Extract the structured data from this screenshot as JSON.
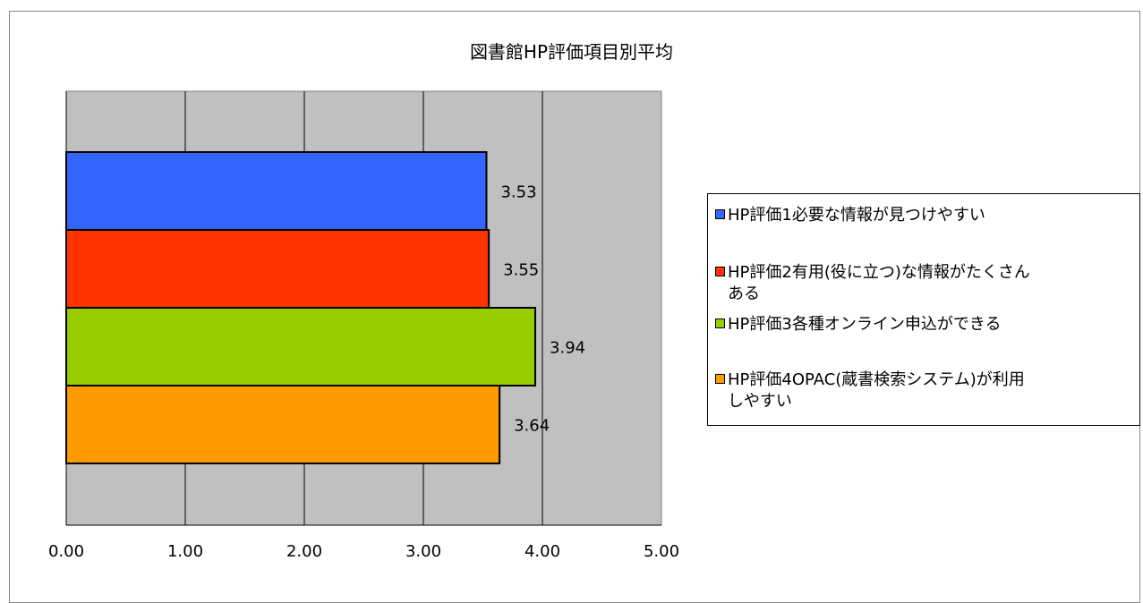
{
  "chart_data": {
    "type": "bar",
    "orientation": "horizontal",
    "title": "図書館HP評価項目別平均",
    "xlabel": "",
    "ylabel": "",
    "xlim": [
      0,
      5
    ],
    "x_ticks": [
      "0.00",
      "1.00",
      "2.00",
      "3.00",
      "4.00",
      "5.00"
    ],
    "grid": true,
    "plot_background": "#c0c0c0",
    "legend_position": "right",
    "series": [
      {
        "name": "HP評価1必要な情報が見つけやすい",
        "value": 3.53,
        "label": "3.53",
        "color": "#3366ff"
      },
      {
        "name": "HP評価2有用(役に立つ)な情報がたくさんある",
        "value": 3.55,
        "label": "3.55",
        "color": "#ff3300"
      },
      {
        "name": "HP評価3各種オンライン申込ができる",
        "value": 3.94,
        "label": "3.94",
        "color": "#99cc00"
      },
      {
        "name": "HP評価4OPAC(蔵書検索システム)が利用しやすい",
        "value": 3.64,
        "label": "3.64",
        "color": "#ff9900"
      }
    ]
  },
  "legend": {
    "items": [
      {
        "line1": "HP評価1必要な情報が見つけやすい",
        "line2": ""
      },
      {
        "line1": "HP評価2有用(役に立つ)な情報がたくさん",
        "line2": "ある"
      },
      {
        "line1": "HP評価3各種オンライン申込ができる",
        "line2": ""
      },
      {
        "line1": "HP評価4OPAC(蔵書検索システム)が利用",
        "line2": "しやすい"
      }
    ]
  }
}
